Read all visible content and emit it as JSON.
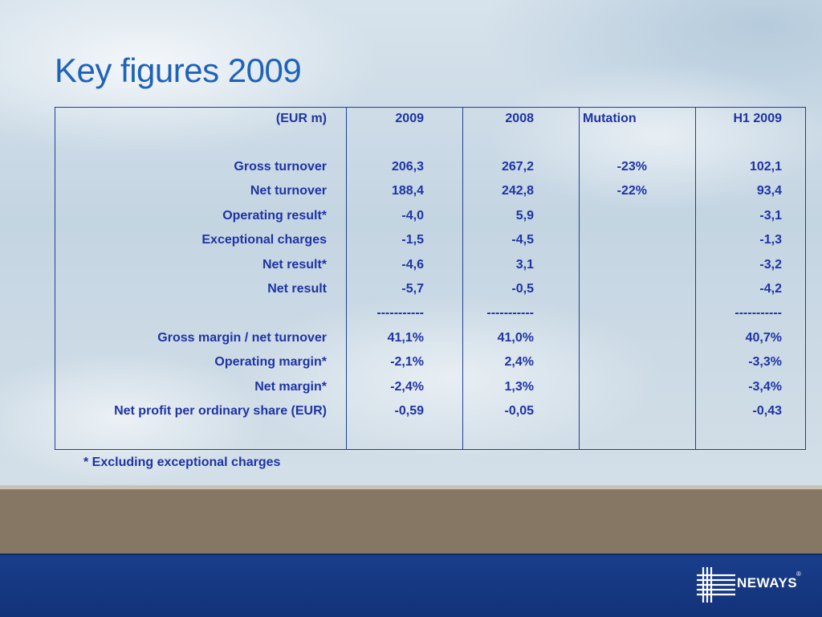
{
  "title": "Key figures 2009",
  "table": {
    "headers": {
      "label": "(EUR m)",
      "col_2009": "2009",
      "col_2008": "2008",
      "col_mutation": "Mutation",
      "col_h1": "H1 2009"
    },
    "rows": [
      {
        "label": "Gross turnover",
        "v2009": "206,3",
        "v2008": "267,2",
        "mutation": "-23%",
        "h1": "102,1"
      },
      {
        "label": "Net turnover",
        "v2009": "188,4",
        "v2008": "242,8",
        "mutation": "-22%",
        "h1": "93,4"
      },
      {
        "label": "Operating result*",
        "v2009": "-4,0",
        "v2008": "5,9",
        "mutation": "",
        "h1": "-3,1"
      },
      {
        "label": "Exceptional charges",
        "v2009": "-1,5",
        "v2008": "-4,5",
        "mutation": "",
        "h1": "-1,3"
      },
      {
        "label": "Net result*",
        "v2009": "-4,6",
        "v2008": "3,1",
        "mutation": "",
        "h1": "-3,2"
      },
      {
        "label": "Net result",
        "v2009": "-5,7",
        "v2008": "-0,5",
        "mutation": "",
        "h1": "-4,2"
      },
      {
        "label": "",
        "v2009": "-----------",
        "v2008": "-----------",
        "mutation": "",
        "h1": "-----------"
      },
      {
        "label": "Gross margin / net turnover",
        "v2009": "41,1%",
        "v2008": "41,0%",
        "mutation": "",
        "h1": "40,7%"
      },
      {
        "label": "Operating margin*",
        "v2009": "-2,1%",
        "v2008": "2,4%",
        "mutation": "",
        "h1": "-3,3%"
      },
      {
        "label": "Net margin*",
        "v2009": "-2,4%",
        "v2008": "1,3%",
        "mutation": "",
        "h1": "-3,4%"
      },
      {
        "label": "Net profit per ordinary share (EUR)",
        "v2009": "-0,59",
        "v2008": "-0,05",
        "mutation": "",
        "h1": "-0,43"
      }
    ]
  },
  "footnote": "* Excluding exceptional charges",
  "logo": {
    "text": "NEWAYS",
    "mark": "®",
    "icon": "neways-logo-icon"
  },
  "colors": {
    "title": "#1f63b8",
    "table_text": "#1e33a6",
    "table_border": "#1e3f98",
    "footer_brown": "#857764",
    "footer_blue": "#1a3e8c"
  }
}
